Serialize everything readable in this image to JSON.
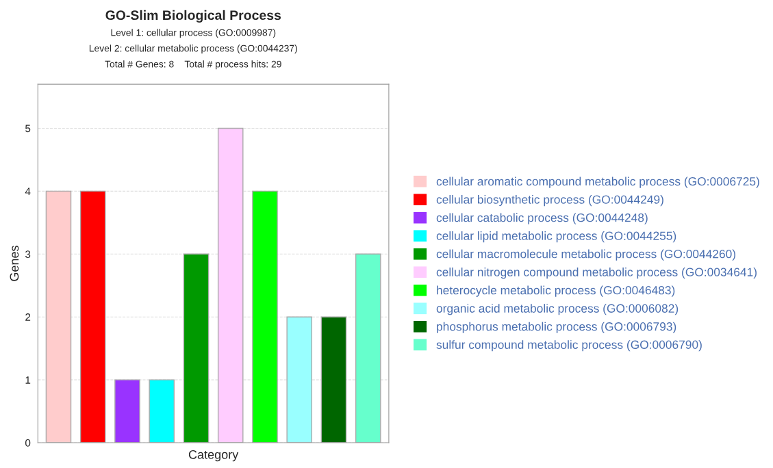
{
  "chart_data": {
    "type": "bar",
    "title": "GO-Slim Biological Process",
    "subtitle": "Level 1: cellular process (GO:0009987)\nLevel 2: cellular metabolic process (GO:0044237)\nTotal # Genes: 8    Total # process hits: 29",
    "xlabel": "Category",
    "ylabel": "Genes",
    "categories": [
      null,
      null,
      null,
      null,
      null,
      null,
      null,
      null,
      null,
      null
    ],
    "series": [
      {
        "name": "cellular aromatic compound metabolic process (GO:0006725)",
        "color": "#ffcccc",
        "values": [
          4,
          null,
          null,
          null,
          null,
          null,
          null,
          null,
          null,
          null
        ]
      },
      {
        "name": "cellular biosynthetic process (GO:0044249)",
        "color": "#ff0000",
        "values": [
          null,
          4,
          null,
          null,
          null,
          null,
          null,
          null,
          null,
          null
        ]
      },
      {
        "name": "cellular catabolic process (GO:0044248)",
        "color": "#9933ff",
        "values": [
          null,
          null,
          1,
          null,
          null,
          null,
          null,
          null,
          null,
          null
        ]
      },
      {
        "name": "cellular lipid metabolic process (GO:0044255)",
        "color": "#00ffff",
        "values": [
          null,
          null,
          null,
          1,
          null,
          null,
          null,
          null,
          null,
          null
        ]
      },
      {
        "name": "cellular macromolecule metabolic process (GO:0044260)",
        "color": "#009900",
        "values": [
          null,
          null,
          null,
          null,
          3,
          null,
          null,
          null,
          null,
          null
        ]
      },
      {
        "name": "cellular nitrogen compound metabolic process (GO:0034641)",
        "color": "#ffccff",
        "values": [
          null,
          null,
          null,
          null,
          null,
          5,
          null,
          null,
          null,
          null
        ]
      },
      {
        "name": "heterocycle metabolic process (GO:0046483)",
        "color": "#00ff00",
        "values": [
          null,
          null,
          null,
          null,
          null,
          null,
          4,
          null,
          null,
          null
        ]
      },
      {
        "name": "organic acid metabolic process (GO:0006082)",
        "color": "#99ffff",
        "values": [
          null,
          null,
          null,
          null,
          null,
          null,
          null,
          2,
          null,
          null
        ]
      },
      {
        "name": "phosphorus metabolic process (GO:0006793)",
        "color": "#006600",
        "values": [
          null,
          null,
          null,
          null,
          null,
          null,
          null,
          null,
          2,
          null
        ]
      },
      {
        "name": "sulfur compound metabolic process (GO:0006790)",
        "color": "#66ffcc",
        "values": [
          null,
          null,
          null,
          null,
          null,
          null,
          null,
          null,
          null,
          3
        ]
      }
    ],
    "ylim": [
      0,
      5.7
    ],
    "yticks": [
      0,
      1,
      2,
      3,
      4,
      5
    ],
    "grid": "y",
    "legend": "right"
  }
}
